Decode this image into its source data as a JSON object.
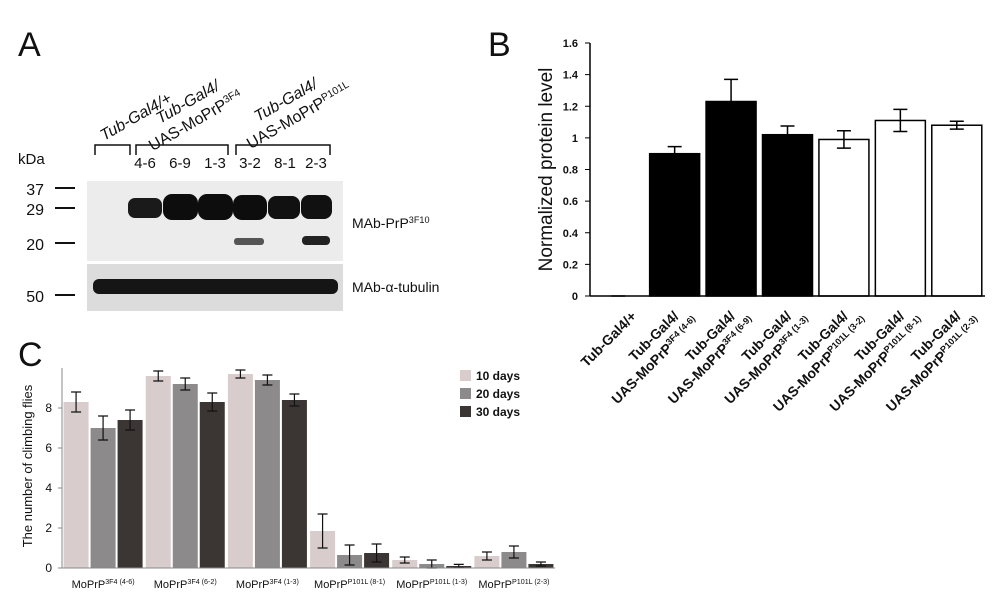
{
  "panel_a": {
    "label": "A",
    "genotypes": [
      {
        "line1": "Tub-Gal4/+"
      },
      {
        "line1": "Tub-Gal4/",
        "line2": "UAS-MoPrP",
        "sup": "3F4"
      },
      {
        "line1": "Tub-Gal4/",
        "line2": "UAS-MoPrP",
        "sup": "P101L"
      }
    ],
    "kda_label": "kDa",
    "lanes": [
      "4-6",
      "6-9",
      "1-3",
      "3-2",
      "8-1",
      "2-3"
    ],
    "markers": [
      "37",
      "29",
      "20",
      "50"
    ],
    "antibodies": [
      {
        "base": "MAb-PrP",
        "sup": "3F10"
      },
      {
        "base": "MAb-α-tubulin"
      }
    ]
  },
  "chart_data": [
    {
      "type": "bar",
      "label": "B",
      "ylabel": "Normalized protein level",
      "categories": [
        {
          "line1": "Tub-Gal4/+"
        },
        {
          "line1": "Tub-Gal4/",
          "line2": "UAS-MoPrP",
          "sup": "3F4 (4-6)"
        },
        {
          "line1": "Tub-Gal4/",
          "line2": "UAS-MoPrP",
          "sup": "3F4 (6-9)"
        },
        {
          "line1": "Tub-Gal4/",
          "line2": "UAS-MoPrP",
          "sup": "3F4 (1-3)"
        },
        {
          "line1": "Tub-Gal4/",
          "line2": "UAS-MoPrP",
          "sup": "P101L (3-2)"
        },
        {
          "line1": "Tub-Gal4/",
          "line2": "UAS-MoPrP",
          "sup": "P101L (8-1)"
        },
        {
          "line1": "Tub-Gal4/",
          "line2": "UAS-MoPrP",
          "sup": "P101L (2-3)"
        }
      ],
      "values": [
        0,
        0.9,
        1.23,
        1.02,
        0.99,
        1.11,
        1.08
      ],
      "errors": [
        0,
        0.045,
        0.14,
        0.055,
        0.055,
        0.07,
        0.025
      ],
      "colors": [
        "#000000",
        "#000000",
        "#000000",
        "#000000",
        "#ffffff",
        "#ffffff",
        "#ffffff"
      ],
      "ylim": [
        0,
        1.6
      ],
      "yticks": [
        0,
        0.2,
        0.4,
        0.6,
        0.8,
        1,
        1.2,
        1.4,
        1.6
      ]
    },
    {
      "type": "grouped_bar",
      "label": "C",
      "ylabel": "The number of climbing flies",
      "categories": [
        {
          "base": "MoPrP",
          "sup": "3F4 (4-6)"
        },
        {
          "base": "MoPrP",
          "sup": "3F4 (6-2)"
        },
        {
          "base": "MoPrP",
          "sup": "3F4 (1-3)"
        },
        {
          "base": "MoPrP",
          "sup": "P101L (8-1)"
        },
        {
          "base": "MoPrP",
          "sup": "P101L (1-3)"
        },
        {
          "base": "MoPrP",
          "sup": "P101L (2-3)"
        }
      ],
      "series": [
        {
          "name": "10 days",
          "color": "#d9cccc",
          "values": [
            8.3,
            9.6,
            9.7,
            1.85,
            0.4,
            0.6
          ],
          "errors": [
            0.5,
            0.25,
            0.2,
            0.85,
            0.15,
            0.2
          ]
        },
        {
          "name": "20 days",
          "color": "#8c8a8a",
          "values": [
            7.0,
            9.2,
            9.4,
            0.65,
            0.2,
            0.8
          ],
          "errors": [
            0.6,
            0.3,
            0.25,
            0.5,
            0.2,
            0.3
          ]
        },
        {
          "name": "30 days",
          "color": "#3b3634",
          "values": [
            7.4,
            8.3,
            8.4,
            0.75,
            0.1,
            0.2
          ],
          "errors": [
            0.5,
            0.45,
            0.3,
            0.45,
            0.08,
            0.1
          ]
        }
      ],
      "ylim": [
        0,
        10
      ],
      "yticks": [
        0,
        2,
        4,
        6,
        8
      ]
    }
  ]
}
